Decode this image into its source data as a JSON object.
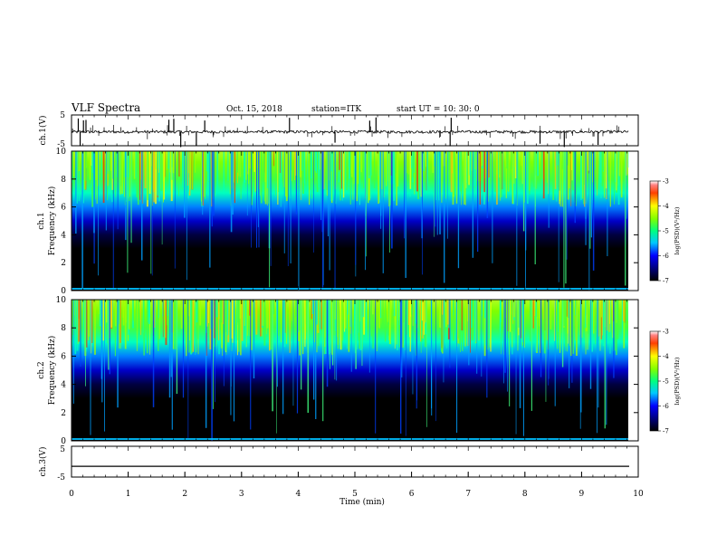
{
  "header": {
    "title": "VLF Spectra",
    "date": "Oct. 15, 2018",
    "station": "station=ITK",
    "start_ut": "start UT =   10: 30: 0"
  },
  "chart_data": [
    {
      "type": "line",
      "panel": "ch1-waveform",
      "ylabel": "ch.1(V)",
      "ylim": [
        -5,
        5
      ],
      "yticks": [
        5,
        -5
      ],
      "x": [
        0,
        10
      ],
      "baseline": -0.5,
      "xlabel": "",
      "data_extent_max": 9.84
    },
    {
      "type": "heatmap",
      "panel": "ch1-spectrogram",
      "ylabel_line1": "ch.1",
      "ylabel_line2": "Frequency (kHz)",
      "ylim": [
        0,
        10
      ],
      "yticks": [
        "0",
        "2",
        "4",
        "6",
        "8",
        "10"
      ],
      "xlim": [
        0,
        10
      ],
      "colorbar": {
        "label": "log(PSD)(V²/Hz)",
        "range": [
          -7,
          -3
        ],
        "ticks": [
          "-3",
          "-4",
          "-5",
          "-6",
          "-7"
        ]
      }
    },
    {
      "type": "heatmap",
      "panel": "ch2-spectrogram",
      "ylabel_line1": "ch.2",
      "ylabel_line2": "Frequency (kHz)",
      "ylim": [
        0,
        10
      ],
      "yticks": [
        "0",
        "2",
        "4",
        "6",
        "8",
        "10"
      ],
      "xlim": [
        0,
        10
      ],
      "colorbar": {
        "label": "log(PSD)(V²/Hz)",
        "range": [
          -7,
          -3
        ],
        "ticks": [
          "-3",
          "-4",
          "-5",
          "-6",
          "-7"
        ]
      }
    },
    {
      "type": "line",
      "panel": "ch3-waveform",
      "ylabel": "ch.3(V)",
      "ylim": [
        -5,
        5
      ],
      "yticks": [
        5,
        -5
      ],
      "baseline": -1.5,
      "xlim": [
        0,
        10
      ],
      "xticks": [
        "0",
        "1",
        "2",
        "3",
        "4",
        "5",
        "6",
        "7",
        "8",
        "9",
        "10"
      ],
      "xlabel": "Time (min)"
    }
  ]
}
